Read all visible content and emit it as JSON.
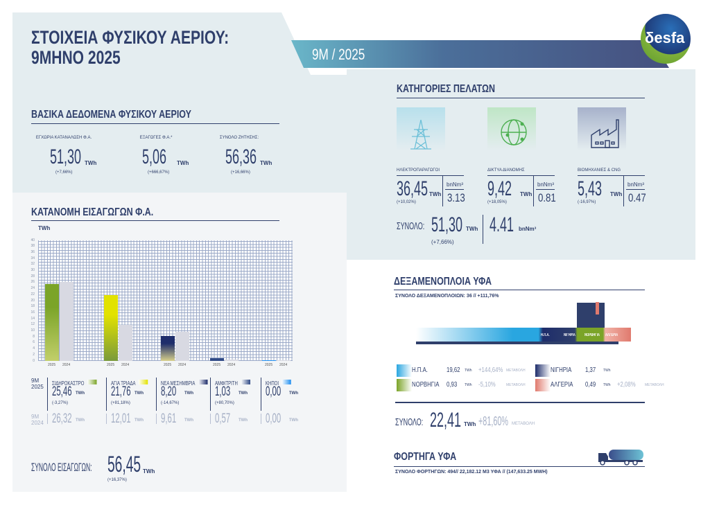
{
  "header": {
    "title_line1": "ΣΤΟΙΧΕΙΑ ΦΥΣΙΚΟΥ ΑΕΡΙΟΥ:",
    "title_line2": "9ΜΗΝΟ 2025",
    "period": "9M / 2025",
    "logo_text": "δesfa"
  },
  "basic": {
    "heading": "ΒΑΣΙΚΑ ΔΕΔΟΜΕΝΑ ΦΥΣΙΚΟΥ ΑΕΡΙΟΥ",
    "items": [
      {
        "label": "ΕΓΧΩΡΙΑ ΚΑΤΑΝΑΛΩΣΗ Φ.Α.",
        "value": "51,30",
        "unit": "TWh",
        "change": "(+7,66%)"
      },
      {
        "label": "ΕΞΑΓΩΓΕΣ Φ.Α.*",
        "value": "5,06",
        "unit": "TWh",
        "change": "(+666,67%)"
      },
      {
        "label": "ΣΥΝΟΛΟ ΖΗΤΗΣΗΣ:",
        "value": "56,36",
        "unit": "TWh",
        "change": "(+16,66%)"
      }
    ]
  },
  "customers": {
    "heading": "ΚΑΤΗΓΟΡΙΕΣ ΠΕΛΑΤΩΝ",
    "items": [
      {
        "label": "ΗΛΕΚΤΡΟΠΑΡΑΓΩΓΟΙ",
        "value": "36,45",
        "unit": "TWh",
        "change": "(+10,02%)",
        "bnm_label": "bnNm³",
        "bnm": "3.13"
      },
      {
        "label": "ΔΙΚΤΥΑ ΔΙΑΝΟΜΗΣ",
        "value": "9,42",
        "unit": "TWh",
        "change": "(+18,05%)",
        "bnm_label": "bnNm³",
        "bnm": "0.81"
      },
      {
        "label": "ΒΙΟΜΗΧΑΝΙΕΣ & CNG",
        "value": "5,43",
        "unit": "TWh",
        "change": "(-16,97%)",
        "bnm_label": "bnNm³",
        "bnm": "0.47"
      }
    ],
    "total_label": "ΣΥΝΟΛΟ:",
    "total_value": "51,30",
    "total_unit": "TWh",
    "total_change": "(+7,66%)",
    "total_bnm": "4.41",
    "total_bnm_unit": "bnNm³"
  },
  "imports": {
    "heading": "ΚΑΤΑΝΟΜΗ ΕΙΣΑΓΩΓΩΝ Φ.Α.",
    "row1_label": "9M 2025",
    "row2_label": "9M 2024",
    "points": [
      {
        "name": "ΣΙΔΗΡΟΚΑΣΤΡΟ",
        "v2025": "25,46",
        "change": "(-3,27%)",
        "v2024": "26,32",
        "color": "#7ba428"
      },
      {
        "name": "ΑΓΙΑ ΤΡΙΑΔΑ",
        "v2025": "21,76",
        "change": "(+81,18%)",
        "v2024": "12,01",
        "color": "#e2e200"
      },
      {
        "name": "ΝΕΑ ΜΕΣΗΜΒΡΙΑ",
        "v2025": "8,20",
        "change": "(-14,67%)",
        "v2024": "9,61",
        "color": "#1e2d6b"
      },
      {
        "name": "ΑΜΦΙΤΡΙΤΗ",
        "v2025": "1,03",
        "change": "(+80,70%)",
        "v2024": "0,57",
        "color": "#2f4a86"
      },
      {
        "name": "ΚΗΠΟΙ",
        "v2025": "0,00",
        "change": "",
        "v2024": "0,00",
        "color": "#1f8ef0"
      }
    ],
    "unit": "TWh",
    "total_label": "ΣΥΝΟΛΟ ΕΙΣΑΓΩΓΩΝ:",
    "total_value": "56,45",
    "total_unit": "TWh",
    "total_change": "(+16,37%)"
  },
  "chart_data": {
    "type": "bar",
    "ylabel": "TWh",
    "ylim": [
      0,
      40
    ],
    "yticks": [
      0,
      2,
      4,
      6,
      8,
      10,
      12,
      14,
      16,
      18,
      20,
      22,
      24,
      26,
      28,
      30,
      32,
      34,
      36,
      38,
      40
    ],
    "categories": [
      "ΣΙΔΗΡΟΚΑΣΤΡΟ",
      "ΑΓΙΑ ΤΡΙΑΔΑ",
      "ΝΕΑ ΜΕΣΗΜΒΡΙΑ",
      "ΑΜΦΙΤΡΙΤΗ",
      "ΚΗΠΟΙ"
    ],
    "series": [
      {
        "name": "2025",
        "values": [
          25.46,
          21.76,
          8.2,
          1.03,
          0.0
        ]
      },
      {
        "name": "2024",
        "values": [
          26.32,
          12.01,
          9.61,
          0.57,
          0.0
        ]
      }
    ],
    "grid": true
  },
  "lng": {
    "heading": "ΔΕΞΑΜΕΝΟΠΛΟΙΑ ΥΦΑ",
    "subtitle": "ΣΥΝΟΛΟ ΔΕΞΑΜΕΝΟΠΛΟΙΩΝ: 36   //   +111,76%",
    "ship_labels": [
      "Η.Π.Α.",
      "ΝΙΓΗΡΙΑ",
      "ΝΟΡΒΗΓΙΑ",
      "ΑΛΓΕΡΙΑ"
    ],
    "sources": [
      {
        "name": "Η.Π.Α.",
        "value": "19,62",
        "unit": "TWh",
        "change": "+144,64%",
        "change_label": "ΜΕΤΑΒΟΛΗ",
        "color": "#29a6e0"
      },
      {
        "name": "ΝΙΓΗΡΙΑ",
        "value": "1,37",
        "unit": "TWh",
        "change": "",
        "change_label": "",
        "color": "#1e2d6b"
      },
      {
        "name": "ΝΟΡΒΗΓΙΑ",
        "value": "0,93",
        "unit": "TWh",
        "change": "-5,10%",
        "change_label": "ΜΕΤΑΒΟΛΗ",
        "color": "#7ba428"
      },
      {
        "name": "ΑΛΓΕΡΙΑ",
        "value": "0,49",
        "unit": "TWh",
        "change": "+2,08%",
        "change_label": "ΜΕΤΑΒΟΛΗ",
        "color": "#e07a6e"
      }
    ],
    "total_label": "ΣΥΝΟΛΟ:",
    "total_value": "22,41",
    "total_unit": "TWh",
    "total_change": "+81,60%",
    "total_change_label": "ΜΕΤΑΒΟΛΗ"
  },
  "trucks": {
    "heading": "ΦΟΡΤΗΓΑ ΥΦΑ",
    "subtitle": "ΣΥΝΟΛΟ ΦΟΡΤΗΓΩΝ: 494// 22,182.12 M3 ΥΦΑ // (147,633.25 MWH)"
  }
}
